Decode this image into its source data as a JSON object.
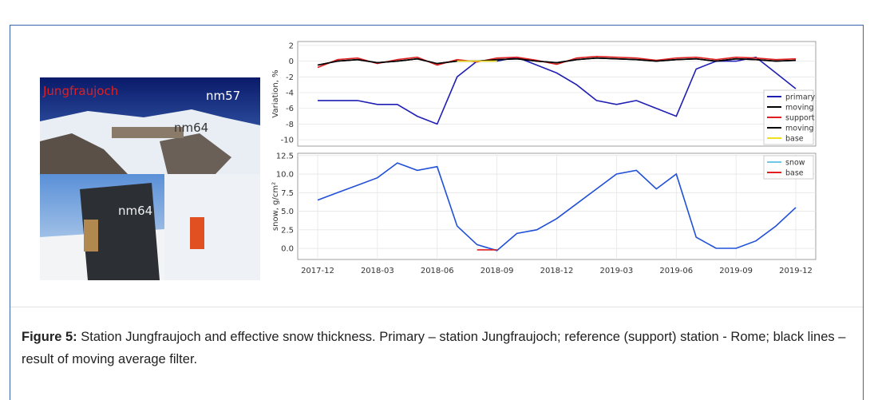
{
  "photo": {
    "title": "Jungfraujoch",
    "label_top": "nm57",
    "label_middle": "nm64",
    "label_bottom": "nm64"
  },
  "caption": {
    "label": "Figure 5:",
    "text": "Station Jungfraujoch and effective snow thickness. Primary – station Jungfraujoch; reference (support) station - Rome; black lines – result of moving average filter."
  },
  "chart_data": [
    {
      "type": "line",
      "ylabel": "Variation, %",
      "ylim": [
        -10.8,
        2.5
      ],
      "yticks": [
        -10,
        -8,
        -6,
        -4,
        -2,
        0,
        2
      ],
      "xlim": [
        "2017-11",
        "2020-01"
      ],
      "grid": true,
      "legend": "lower right",
      "x": [
        "2017-12",
        "2018-01",
        "2018-02",
        "2018-03",
        "2018-04",
        "2018-05",
        "2018-06",
        "2018-07",
        "2018-08",
        "2018-09",
        "2018-10",
        "2018-11",
        "2018-12",
        "2019-01",
        "2019-02",
        "2019-03",
        "2019-04",
        "2019-05",
        "2019-06",
        "2019-07",
        "2019-08",
        "2019-09",
        "2019-10",
        "2019-11",
        "2019-12"
      ],
      "series": [
        {
          "name": "primary",
          "color": "#1f1fb4",
          "values": [
            -5,
            -5,
            -5,
            -5.5,
            -5.5,
            -7,
            -8,
            -2,
            0,
            0,
            0.5,
            -0.5,
            -1.5,
            -3,
            -5,
            -5.5,
            -5,
            -6,
            -7,
            -1,
            0,
            0,
            0.5,
            -1.5,
            -3.5
          ]
        },
        {
          "name": "moving",
          "color": "#000000",
          "values": [
            -0.5,
            0,
            0.2,
            -0.2,
            0,
            0.3,
            -0.3,
            0,
            0,
            0.2,
            0.3,
            0,
            -0.2,
            0.2,
            0.4,
            0.3,
            0.2,
            0,
            0.2,
            0.3,
            0,
            0.3,
            0.2,
            0,
            0.1
          ]
        },
        {
          "name": "support",
          "color": "#e02020",
          "values": [
            -0.8,
            0.2,
            0.4,
            -0.3,
            0.2,
            0.5,
            -0.5,
            0.2,
            -0.1,
            0.4,
            0.5,
            0.1,
            -0.4,
            0.4,
            0.6,
            0.5,
            0.4,
            0.1,
            0.4,
            0.5,
            0.2,
            0.5,
            0.4,
            0.2,
            0.3
          ]
        },
        {
          "name": "moving",
          "color": "#000000",
          "values": [
            -0.5,
            0,
            0.2,
            -0.2,
            0,
            0.3,
            -0.3,
            0,
            0,
            0.2,
            0.3,
            0,
            -0.2,
            0.2,
            0.4,
            0.3,
            0.2,
            0,
            0.2,
            0.3,
            0,
            0.3,
            0.2,
            0,
            0.1
          ]
        },
        {
          "name": "base",
          "color": "#f0e020",
          "values": [
            null,
            null,
            null,
            null,
            null,
            null,
            null,
            0,
            0,
            0,
            null,
            null,
            null,
            null,
            null,
            null,
            null,
            null,
            null,
            null,
            null,
            null,
            null,
            null,
            null
          ]
        }
      ]
    },
    {
      "type": "line",
      "ylabel": "snow, g/cm²",
      "ylim": [
        -1.5,
        12.8
      ],
      "yticks": [
        {
          "value": 0,
          "label": "0.0"
        },
        {
          "value": 2.5,
          "label": "2.5"
        },
        {
          "value": 5,
          "label": "5.0"
        },
        {
          "value": 7.5,
          "label": "7.5"
        },
        {
          "value": 10,
          "label": "10.0"
        },
        {
          "value": 12.5,
          "label": "12.5"
        }
      ],
      "xlim": [
        "2017-11",
        "2020-01"
      ],
      "xticks": [
        "2017-12",
        "2018-03",
        "2018-06",
        "2018-09",
        "2018-12",
        "2019-03",
        "2019-06",
        "2019-09",
        "2019-12"
      ],
      "grid": true,
      "legend": "upper right",
      "x": [
        "2017-12",
        "2018-01",
        "2018-02",
        "2018-03",
        "2018-04",
        "2018-05",
        "2018-06",
        "2018-07",
        "2018-08",
        "2018-09",
        "2018-10",
        "2018-11",
        "2018-12",
        "2019-01",
        "2019-02",
        "2019-03",
        "2019-04",
        "2019-05",
        "2019-06",
        "2019-07",
        "2019-08",
        "2019-09",
        "2019-10",
        "2019-11",
        "2019-12"
      ],
      "series": [
        {
          "name": "snow",
          "color": "#2050d8",
          "legend_color": "#70c8e8",
          "values": [
            6.5,
            7.5,
            8.5,
            9.5,
            11.5,
            10.5,
            11,
            3,
            0.5,
            -0.3,
            2,
            2.5,
            4,
            6,
            8,
            10,
            10.5,
            8,
            10,
            1.5,
            0,
            0,
            1,
            3,
            5.5
          ]
        },
        {
          "name": "base",
          "color": "#e02020",
          "values": [
            null,
            null,
            null,
            null,
            null,
            null,
            null,
            null,
            -0.2,
            -0.2,
            null,
            null,
            null,
            null,
            null,
            null,
            null,
            null,
            null,
            null,
            null,
            null,
            null,
            null,
            null
          ]
        }
      ]
    }
  ]
}
